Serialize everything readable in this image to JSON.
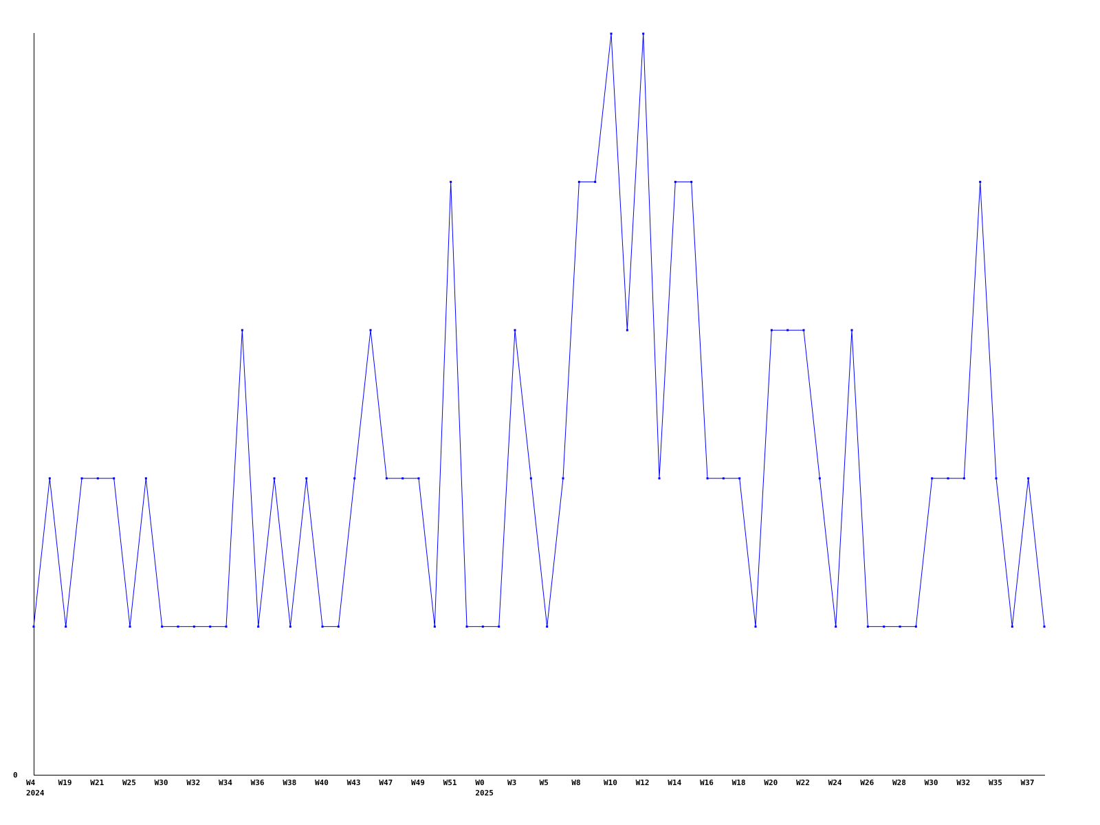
{
  "chart_data": {
    "type": "line",
    "title": "",
    "xlabel": "",
    "ylabel": "",
    "ylim": [
      0,
      5
    ],
    "y_tick_labels": [
      "0"
    ],
    "grid": false,
    "line_color": "#0000ff",
    "axis_color": "#000000",
    "x_tick_labels": [
      {
        "index": 0,
        "label": "W4",
        "sub": "2024"
      },
      {
        "index": 2,
        "label": "W19"
      },
      {
        "index": 4,
        "label": "W21"
      },
      {
        "index": 6,
        "label": "W25"
      },
      {
        "index": 8,
        "label": "W30"
      },
      {
        "index": 10,
        "label": "W32"
      },
      {
        "index": 12,
        "label": "W34"
      },
      {
        "index": 14,
        "label": "W36"
      },
      {
        "index": 16,
        "label": "W38"
      },
      {
        "index": 18,
        "label": "W40"
      },
      {
        "index": 20,
        "label": "W43"
      },
      {
        "index": 22,
        "label": "W47"
      },
      {
        "index": 24,
        "label": "W49"
      },
      {
        "index": 26,
        "label": "W51"
      },
      {
        "index": 28,
        "label": "W0",
        "sub": "2025"
      },
      {
        "index": 30,
        "label": "W3"
      },
      {
        "index": 32,
        "label": "W5"
      },
      {
        "index": 34,
        "label": "W8"
      },
      {
        "index": 36,
        "label": "W10"
      },
      {
        "index": 38,
        "label": "W12"
      },
      {
        "index": 40,
        "label": "W14"
      },
      {
        "index": 42,
        "label": "W16"
      },
      {
        "index": 44,
        "label": "W18"
      },
      {
        "index": 46,
        "label": "W20"
      },
      {
        "index": 48,
        "label": "W22"
      },
      {
        "index": 50,
        "label": "W24"
      },
      {
        "index": 52,
        "label": "W26"
      },
      {
        "index": 54,
        "label": "W28"
      },
      {
        "index": 56,
        "label": "W30"
      },
      {
        "index": 58,
        "label": "W32"
      },
      {
        "index": 60,
        "label": "W35"
      },
      {
        "index": 62,
        "label": "W37"
      }
    ],
    "values": [
      1,
      2,
      1,
      2,
      2,
      2,
      1,
      2,
      1,
      1,
      1,
      1,
      1,
      3,
      1,
      2,
      1,
      2,
      1,
      1,
      2,
      3,
      2,
      2,
      2,
      1,
      4,
      1,
      1,
      1,
      3,
      2,
      1,
      2,
      4,
      4,
      5,
      3,
      5,
      2,
      4,
      4,
      2,
      2,
      2,
      1,
      3,
      3,
      3,
      2,
      1,
      3,
      1,
      1,
      1,
      1,
      2,
      2,
      2,
      4,
      2,
      1,
      2,
      1
    ]
  }
}
